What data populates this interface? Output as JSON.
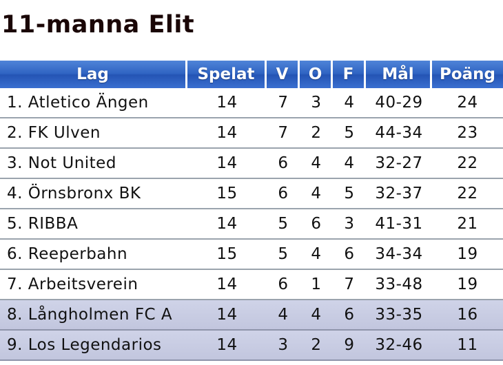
{
  "title": "11-manna Elit",
  "chart_data": {
    "type": "table",
    "columns": [
      "Lag",
      "Spelat",
      "V",
      "O",
      "F",
      "Mål",
      "Poäng"
    ],
    "rows": [
      {
        "team": "1. Atletico Ängen",
        "played": "14",
        "won": "7",
        "drawn": "3",
        "lost": "4",
        "goals": "40-29",
        "points": "24",
        "shaded": false
      },
      {
        "team": "2. FK Ulven",
        "played": "14",
        "won": "7",
        "drawn": "2",
        "lost": "5",
        "goals": "44-34",
        "points": "23",
        "shaded": false
      },
      {
        "team": "3. Not United",
        "played": "14",
        "won": "6",
        "drawn": "4",
        "lost": "4",
        "goals": "32-27",
        "points": "22",
        "shaded": false
      },
      {
        "team": "4. Örnsbronx BK",
        "played": "15",
        "won": "6",
        "drawn": "4",
        "lost": "5",
        "goals": "32-37",
        "points": "22",
        "shaded": false
      },
      {
        "team": "5. RIBBA",
        "played": "14",
        "won": "5",
        "drawn": "6",
        "lost": "3",
        "goals": "41-31",
        "points": "21",
        "shaded": false
      },
      {
        "team": "6. Reeperbahn",
        "played": "15",
        "won": "5",
        "drawn": "4",
        "lost": "6",
        "goals": "34-34",
        "points": "19",
        "shaded": false
      },
      {
        "team": "7. Arbeitsverein",
        "played": "14",
        "won": "6",
        "drawn": "1",
        "lost": "7",
        "goals": "33-48",
        "points": "19",
        "shaded": false
      },
      {
        "team": "8. Långholmen FC A",
        "played": "14",
        "won": "4",
        "drawn": "4",
        "lost": "6",
        "goals": "33-35",
        "points": "16",
        "shaded": true
      },
      {
        "team": "9. Los Legendarios",
        "played": "14",
        "won": "3",
        "drawn": "2",
        "lost": "9",
        "goals": "32-46",
        "points": "11",
        "shaded": true
      }
    ]
  },
  "colors": {
    "header_blue": "#2f63c2",
    "shaded_row": "#c8cce2",
    "title_text": "#1a0606"
  }
}
